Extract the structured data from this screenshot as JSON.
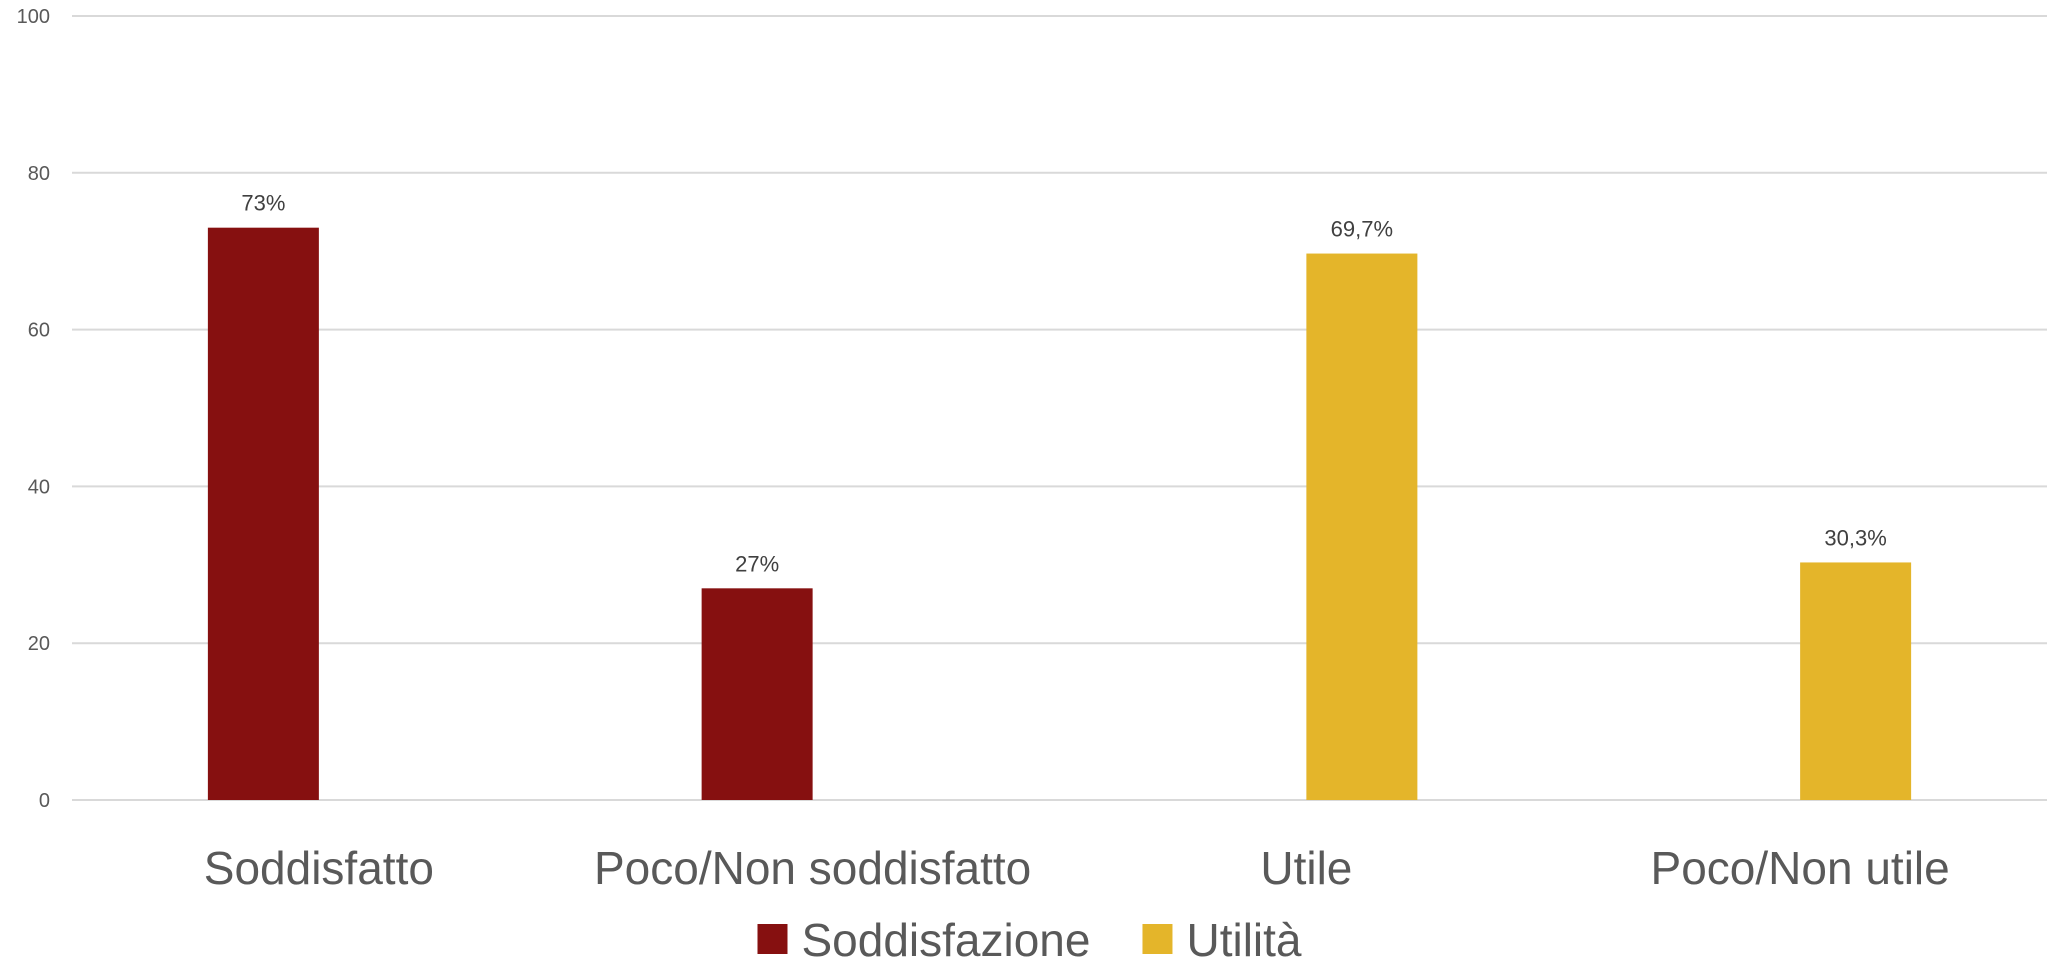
{
  "chart_data": {
    "type": "bar",
    "categories": [
      "Soddisfatto",
      "Poco/Non soddisfatto",
      "Utile",
      "Poco/Non utile"
    ],
    "series": [
      {
        "name": "Soddisfazione",
        "color": "#861010",
        "values": [
          73,
          27,
          null,
          null
        ],
        "labels": [
          "73%",
          "27%",
          null,
          null
        ]
      },
      {
        "name": "Utilità",
        "color": "#E4B52A",
        "values": [
          null,
          null,
          69.7,
          30.3
        ],
        "labels": [
          null,
          null,
          "69,7%",
          "30,3%"
        ]
      }
    ],
    "yticks": [
      "0",
      "20",
      "40",
      "60",
      "80",
      "100"
    ],
    "ylim": [
      0,
      100
    ],
    "grid": true,
    "legend": "bottom-center"
  }
}
